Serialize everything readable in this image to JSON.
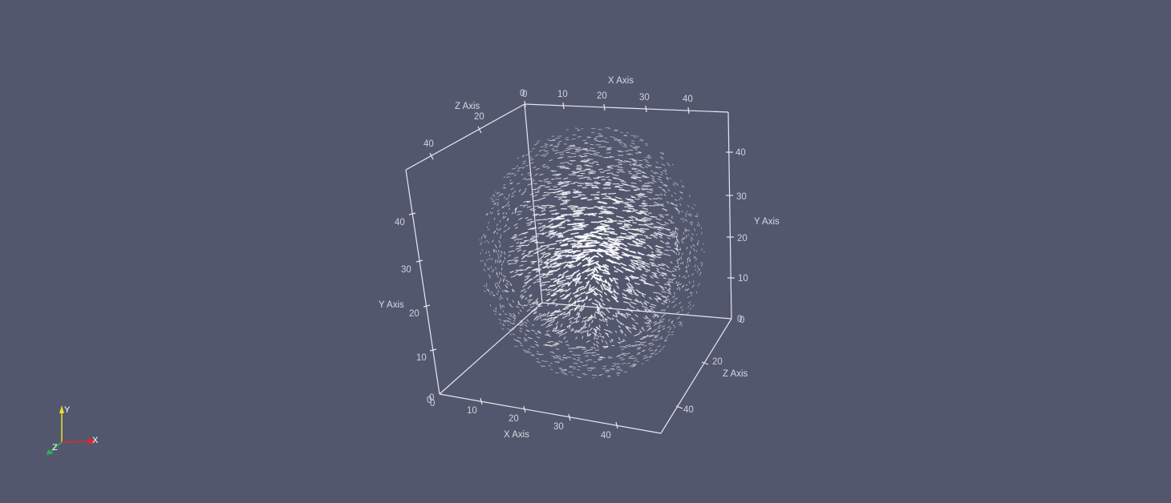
{
  "scene": {
    "background": "#52576e",
    "box_color": "#e6e7ec",
    "glyph_color": "#ffffff"
  },
  "axes": {
    "top_x": {
      "title": "X Axis",
      "ticks": [
        "0",
        "10",
        "20",
        "30",
        "40"
      ]
    },
    "top_z": {
      "title": "Z Axis",
      "ticks": [
        "20",
        "40"
      ]
    },
    "left_y": {
      "title": "Y Axis",
      "ticks": [
        "0",
        "10",
        "20",
        "30",
        "40"
      ]
    },
    "bottom_x": {
      "title": "X Axis",
      "ticks": [
        "0",
        "10",
        "20",
        "30",
        "40"
      ]
    },
    "right_y": {
      "title": "Y Axis",
      "ticks": [
        "0",
        "10",
        "20",
        "30",
        "40"
      ]
    },
    "right_z": {
      "title": "Z Axis",
      "ticks": [
        "20",
        "40"
      ]
    },
    "corner_zero_top": "0",
    "corner_zero_right": "0",
    "corner_zero_left": "0"
  },
  "orientation_triad": {
    "x": {
      "label": "X",
      "color": "#e3262a"
    },
    "y": {
      "label": "Y",
      "color": "#e8e02a"
    },
    "z": {
      "label": "Z",
      "color": "#2fb44a"
    }
  }
}
